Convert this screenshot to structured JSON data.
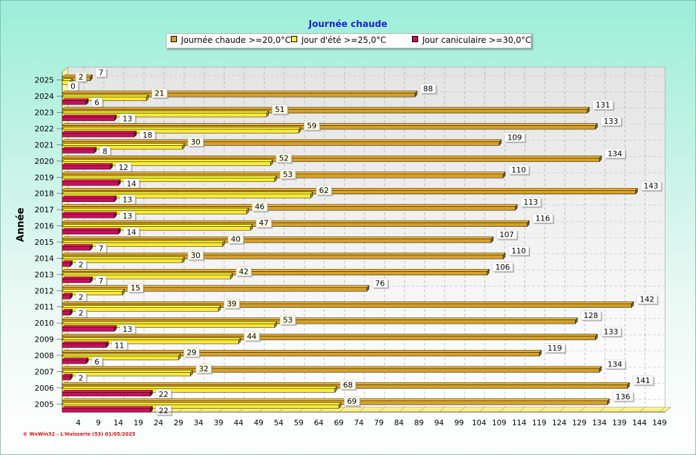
{
  "chart_data": {
    "type": "bar",
    "orientation": "horizontal",
    "title": "Journée chaude",
    "ylabel": "Année",
    "xlabel": "",
    "categories": [
      "2025",
      "2024",
      "2023",
      "2022",
      "2021",
      "2020",
      "2019",
      "2018",
      "2017",
      "2016",
      "2015",
      "2014",
      "2013",
      "2012",
      "2011",
      "2010",
      "2009",
      "2008",
      "2007",
      "2006",
      "2005"
    ],
    "series": [
      {
        "name": "Journée chaude >=20,0°C",
        "color": "#d4a02a",
        "values": [
          7,
          88,
          131,
          133,
          109,
          134,
          110,
          143,
          113,
          116,
          107,
          110,
          106,
          76,
          142,
          128,
          133,
          119,
          134,
          141,
          136
        ]
      },
      {
        "name": "Jour d'été >=25,0°C",
        "color": "#ffea32",
        "values": [
          2,
          21,
          51,
          59,
          30,
          52,
          53,
          62,
          46,
          47,
          40,
          30,
          42,
          15,
          39,
          53,
          44,
          29,
          32,
          68,
          69
        ]
      },
      {
        "name": "Jour caniculaire >=30,0°C",
        "color": "#c8105a",
        "values": [
          0,
          6,
          13,
          18,
          8,
          12,
          14,
          13,
          13,
          14,
          7,
          2,
          7,
          2,
          2,
          13,
          11,
          6,
          2,
          22,
          22
        ]
      }
    ],
    "x_ticks": [
      4,
      9,
      14,
      19,
      24,
      29,
      34,
      39,
      44,
      49,
      54,
      59,
      64,
      69,
      74,
      79,
      84,
      89,
      94,
      99,
      104,
      109,
      114,
      119,
      124,
      129,
      134,
      139,
      144,
      149
    ],
    "xlim": [
      0,
      149
    ],
    "grid": true,
    "legend_position": "top"
  },
  "footer_note": "© WxWin32 - L'Huisserie (53)  01/05/2025"
}
